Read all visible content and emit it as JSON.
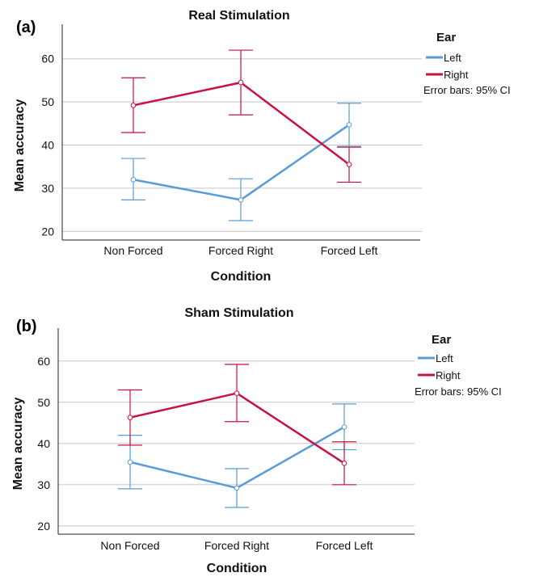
{
  "chart_data": [
    {
      "type": "line",
      "panel_label": "(a)",
      "title": "Real Stimulation",
      "xlabel": "Condition",
      "ylabel": "Mean accuracy",
      "categories": [
        "Non Forced",
        "Forced Right",
        "Forced Left"
      ],
      "ylim": [
        18,
        68
      ],
      "yticks": [
        "20",
        "30",
        "40",
        "50",
        "60"
      ],
      "grid": "horizontal",
      "legend_title": "Ear",
      "legend_position": "top-right, outside plot",
      "error_note": "Error bars: 95% CI",
      "series": [
        {
          "name": "Left",
          "color": "#5b9bd5",
          "values": [
            32.0,
            27.3,
            44.7
          ],
          "ci_low": [
            27.3,
            22.5,
            39.7
          ],
          "ci_high": [
            36.9,
            32.2,
            49.7
          ]
        },
        {
          "name": "Right",
          "color": "#c8123f",
          "values": [
            49.2,
            54.5,
            35.5
          ],
          "ci_low": [
            42.9,
            47.0,
            31.4
          ],
          "ci_high": [
            55.6,
            62.0,
            39.5
          ]
        }
      ]
    },
    {
      "type": "line",
      "panel_label": "(b)",
      "title": "Sham Stimulation",
      "xlabel": "Condition",
      "ylabel": "Mean accuracy",
      "categories": [
        "Non Forced",
        "Forced Right",
        "Forced Left"
      ],
      "ylim": [
        18,
        68
      ],
      "yticks": [
        "20",
        "30",
        "40",
        "50",
        "60"
      ],
      "grid": "horizontal",
      "legend_title": "Ear",
      "legend_position": "top-right, outside plot",
      "error_note": "Error bars: 95% CI",
      "series": [
        {
          "name": "Left",
          "color": "#5b9bd5",
          "values": [
            35.5,
            29.2,
            44.0
          ],
          "ci_low": [
            29.0,
            24.5,
            38.5
          ],
          "ci_high": [
            42.0,
            33.9,
            49.6
          ]
        },
        {
          "name": "Right",
          "color": "#c8123f",
          "values": [
            46.3,
            52.2,
            35.2
          ],
          "ci_low": [
            39.6,
            45.3,
            30.0
          ],
          "ci_high": [
            53.0,
            59.2,
            40.4
          ]
        }
      ]
    }
  ]
}
